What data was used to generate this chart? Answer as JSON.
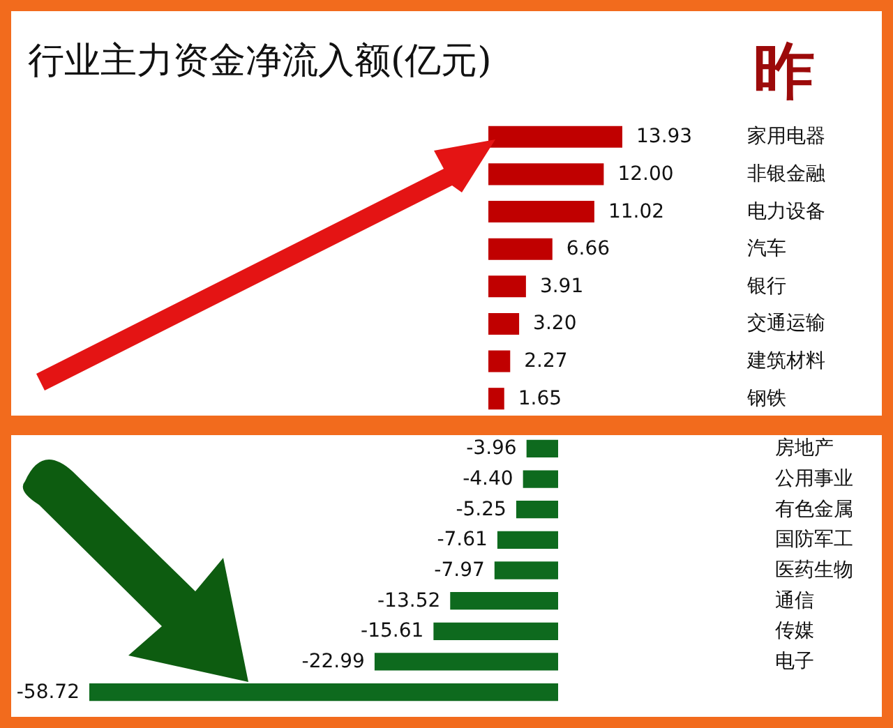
{
  "chart_data": [
    {
      "type": "bar",
      "title": "行业主力资金净流入额(亿元)",
      "annotations": [
        "昨"
      ],
      "orientation": "horizontal",
      "categories": [
        "家用电器",
        "非银金融",
        "电力设备",
        "汽车",
        "银行",
        "交通运输",
        "建筑材料",
        "钢铁"
      ],
      "values": [
        13.93,
        12.0,
        11.02,
        6.66,
        3.91,
        3.2,
        2.27,
        1.65
      ],
      "value_labels": [
        "13.93",
        "12.00",
        "11.02",
        "6.66",
        "3.91",
        "3.20",
        "2.27",
        "1.65"
      ],
      "color": "#c00000"
    },
    {
      "type": "bar",
      "orientation": "horizontal",
      "categories": [
        "房地产",
        "公用事业",
        "有色金属",
        "国防军工",
        "医药生物",
        "通信",
        "传媒",
        "电子",
        null
      ],
      "values": [
        -3.96,
        -4.4,
        -5.25,
        -7.61,
        -7.97,
        -13.52,
        -15.61,
        -22.99,
        -58.72
      ],
      "value_labels": [
        "-3.96",
        "-4.40",
        "-5.25",
        "-7.61",
        "-7.97",
        "-13.52",
        "-15.61",
        "-22.99",
        "-58.72"
      ],
      "color": "#0e6a1e"
    }
  ]
}
